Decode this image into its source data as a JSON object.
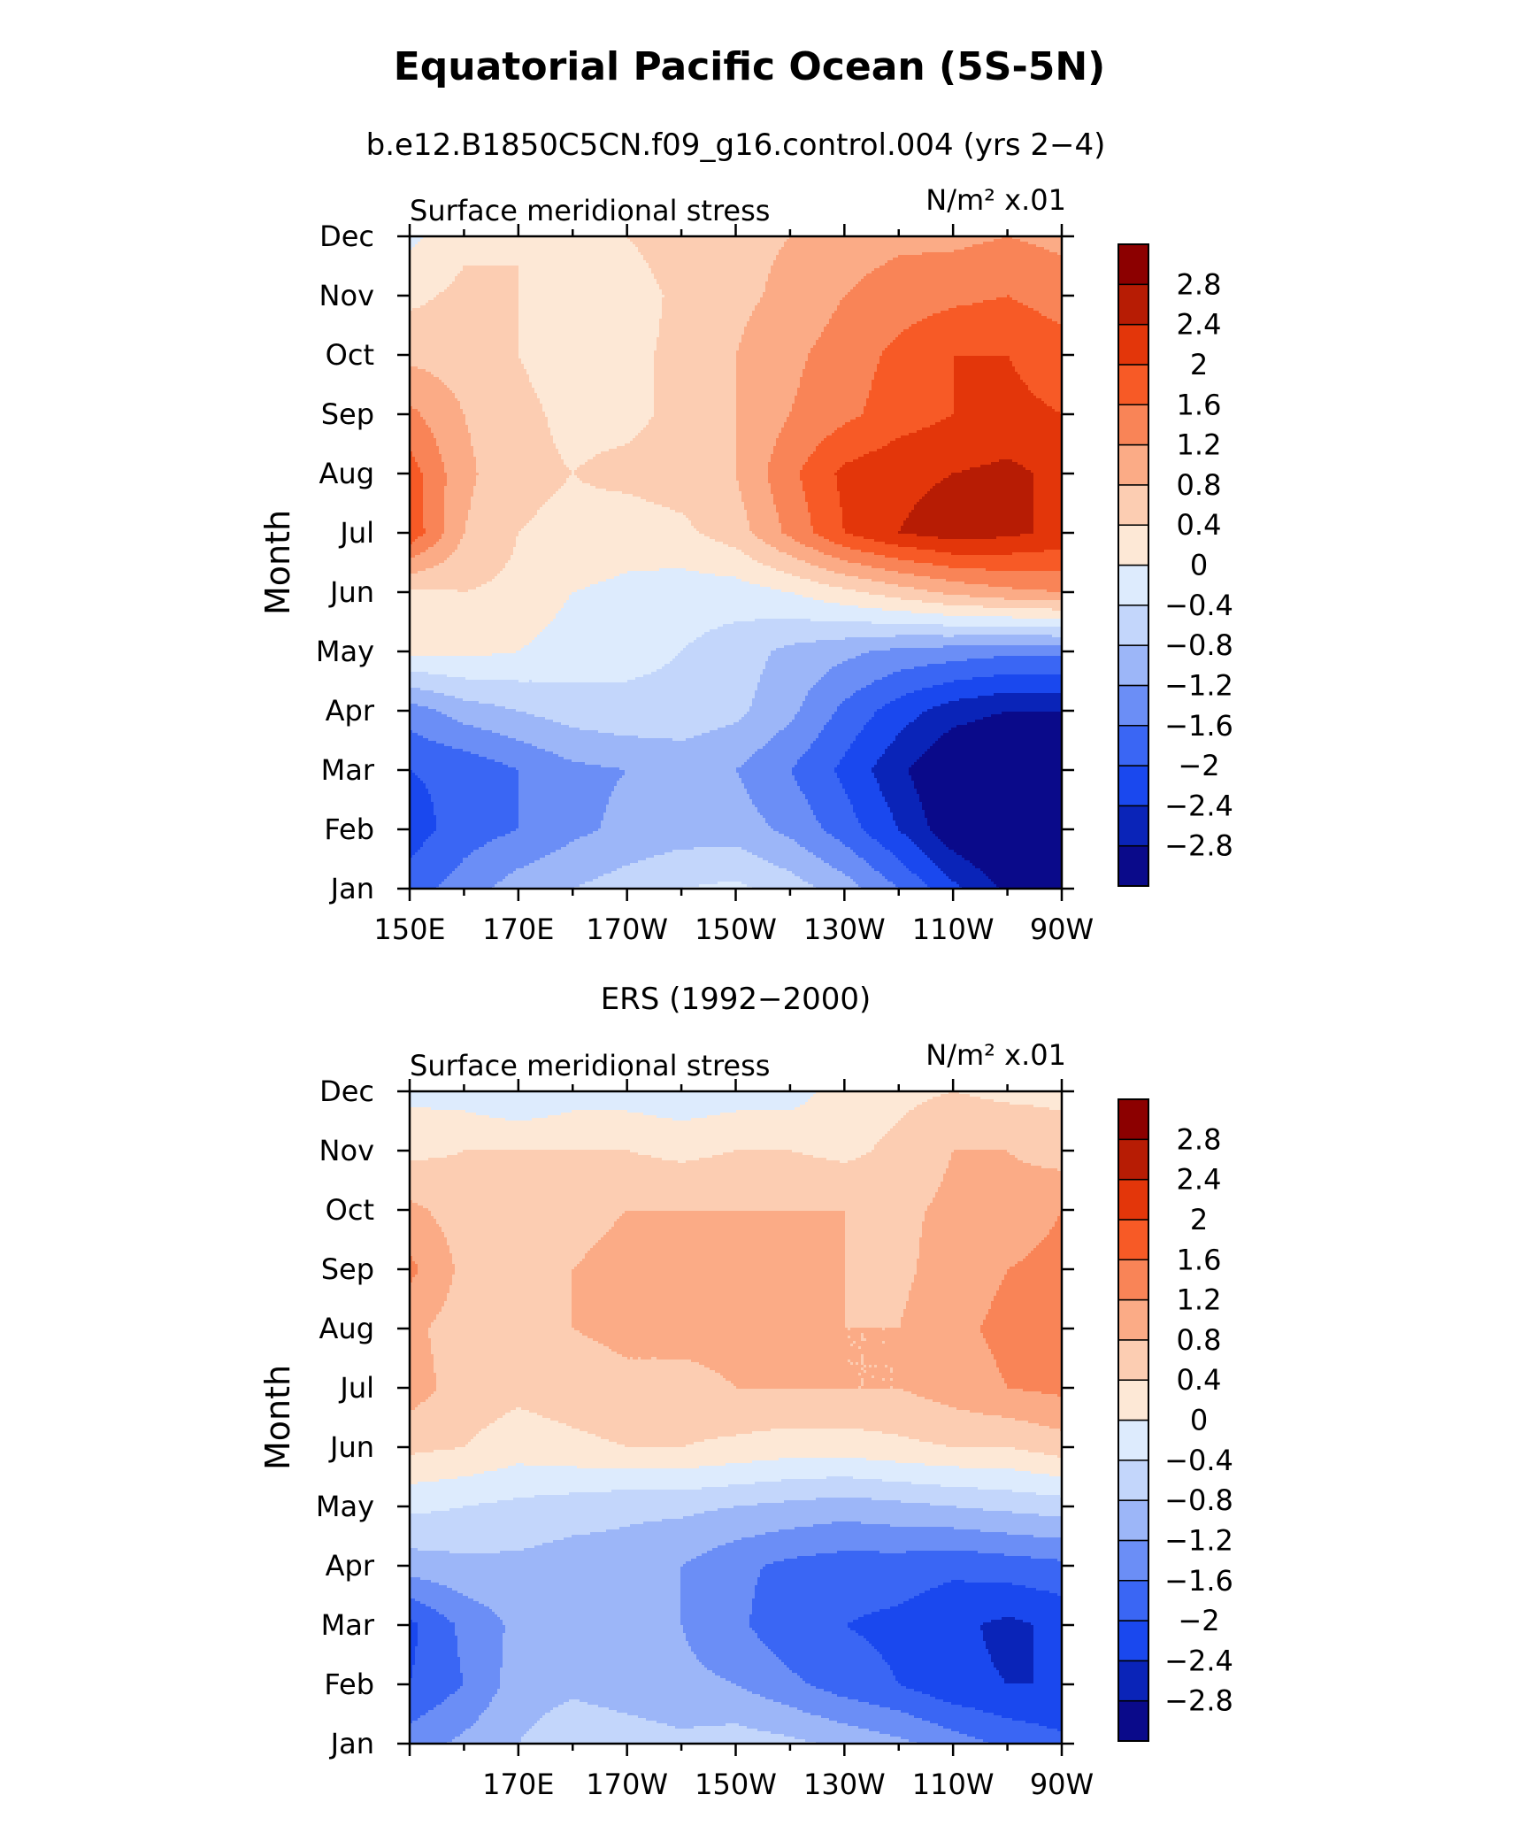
{
  "figure": {
    "title": "Equatorial Pacific Ocean (5S-5N)"
  },
  "colorbar": {
    "colors": [
      "#0a0a8a",
      "#0a24b8",
      "#1a48ee",
      "#3a66f4",
      "#6b8ef6",
      "#9cb6f8",
      "#c3d6fb",
      "#ddebfd",
      "#fde8d6",
      "#fccdb2",
      "#fbab86",
      "#f98457",
      "#f75a26",
      "#e3360a",
      "#b71c04",
      "#8c0000"
    ],
    "labels": [
      "2.8",
      "2.4",
      "2",
      "1.6",
      "1.2",
      "0.8",
      "0.4",
      "0",
      "−0.4",
      "−0.8",
      "−1.2",
      "−1.6",
      "−2",
      "−2.4",
      "−2.8"
    ]
  },
  "chart_data": [
    {
      "type": "heatmap",
      "id": "model",
      "subtitle": "b.e12.B1850C5CN.f09_g16.control.004 (yrs 2−4)",
      "left_label": "Surface meridional stress",
      "units": "N/m² x.01",
      "ylabel": "Month",
      "y_ticks": [
        "Jan",
        "Feb",
        "Mar",
        "Apr",
        "May",
        "Jun",
        "Jul",
        "Aug",
        "Sep",
        "Oct",
        "Nov",
        "Dec"
      ],
      "x_ticks": [
        "150E",
        "170E",
        "170W",
        "150W",
        "130W",
        "110W",
        "90W"
      ],
      "x_range_deg_east": [
        150,
        270
      ],
      "levels": [
        -2.8,
        -2.4,
        -2.0,
        -1.6,
        -1.2,
        -0.8,
        -0.4,
        0,
        0.4,
        0.8,
        1.2,
        1.6,
        2.0,
        2.4,
        2.8
      ],
      "lon": [
        150,
        160,
        170,
        180,
        190,
        200,
        210,
        220,
        230,
        240,
        250,
        260,
        270
      ],
      "values": [
        [
          -1.8,
          -1.4,
          -1.0,
          -0.8,
          -0.6,
          -0.4,
          -0.3,
          -0.6,
          -1.0,
          -1.6,
          -2.3,
          -2.9,
          -3.1
        ],
        [
          -2.2,
          -1.8,
          -1.6,
          -1.3,
          -1.1,
          -1.0,
          -1.0,
          -1.3,
          -1.8,
          -2.4,
          -3.1,
          -3.4,
          -3.4
        ],
        [
          -2.0,
          -1.9,
          -1.6,
          -1.3,
          -1.2,
          -1.1,
          -1.2,
          -1.6,
          -2.1,
          -2.7,
          -3.3,
          -3.5,
          -3.4
        ],
        [
          -1.4,
          -1.0,
          -0.8,
          -0.6,
          -0.5,
          -0.5,
          -0.7,
          -1.1,
          -1.7,
          -2.2,
          -2.6,
          -2.8,
          -2.8
        ],
        [
          0.1,
          0.1,
          0.0,
          -0.2,
          -0.3,
          -0.4,
          -0.6,
          -0.9,
          -1.1,
          -1.3,
          -1.4,
          -1.5,
          -1.5
        ],
        [
          0.3,
          0.4,
          0.3,
          0.0,
          -0.1,
          -0.2,
          -0.2,
          0.0,
          0.3,
          0.6,
          0.9,
          1.1,
          1.2
        ],
        [
          1.9,
          0.8,
          0.4,
          0.3,
          0.2,
          0.3,
          0.6,
          1.3,
          2.0,
          2.4,
          2.6,
          2.5,
          2.3
        ],
        [
          1.8,
          0.9,
          0.5,
          0.4,
          0.5,
          0.6,
          0.8,
          1.5,
          2.1,
          2.3,
          2.4,
          2.5,
          2.3
        ],
        [
          1.3,
          0.8,
          0.5,
          0.3,
          0.3,
          0.5,
          0.8,
          1.2,
          1.5,
          1.8,
          2.0,
          2.1,
          2.0
        ],
        [
          0.7,
          0.6,
          0.4,
          0.2,
          0.3,
          0.5,
          0.8,
          1.1,
          1.4,
          1.7,
          2.0,
          2.0,
          1.8
        ],
        [
          0.3,
          0.5,
          0.4,
          0.3,
          0.2,
          0.5,
          0.7,
          0.9,
          1.2,
          1.4,
          1.5,
          1.6,
          1.4
        ],
        [
          -0.1,
          0.3,
          0.4,
          0.4,
          0.4,
          0.6,
          0.7,
          0.8,
          1.0,
          1.1,
          1.1,
          1.2,
          1.1
        ]
      ]
    },
    {
      "type": "heatmap",
      "id": "ers",
      "subtitle": "ERS (1992−2000)",
      "left_label": "Surface meridional stress",
      "units": "N/m² x.01",
      "ylabel": "Month",
      "y_ticks": [
        "Jan",
        "Feb",
        "Mar",
        "Apr",
        "May",
        "Jun",
        "Jul",
        "Aug",
        "Sep",
        "Oct",
        "Nov",
        "Dec"
      ],
      "x_ticks": [
        "170E",
        "170W",
        "150W",
        "130W",
        "110W",
        "90W"
      ],
      "x_range_deg_east": [
        150,
        270
      ],
      "levels": [
        -2.8,
        -2.4,
        -2.0,
        -1.6,
        -1.2,
        -0.8,
        -0.4,
        0,
        0.4,
        0.8,
        1.2,
        1.6,
        2.0,
        2.4,
        2.8
      ],
      "lon": [
        150,
        160,
        170,
        180,
        190,
        200,
        210,
        220,
        230,
        240,
        250,
        260,
        270
      ],
      "values": [
        [
          -1.4,
          -1.1,
          -0.8,
          -0.5,
          -0.6,
          -0.7,
          -0.6,
          -0.7,
          -0.9,
          -1.1,
          -1.4,
          -1.7,
          -1.9
        ],
        [
          -2.0,
          -1.6,
          -1.0,
          -0.9,
          -1.0,
          -1.1,
          -1.2,
          -1.5,
          -1.8,
          -2.0,
          -2.3,
          -2.4,
          -2.4
        ],
        [
          -2.1,
          -1.5,
          -1.1,
          -1.0,
          -1.1,
          -1.2,
          -1.5,
          -1.9,
          -2.0,
          -2.1,
          -2.3,
          -2.5,
          -2.3
        ],
        [
          -1.0,
          -0.9,
          -0.9,
          -1.0,
          -1.0,
          -1.2,
          -1.5,
          -1.7,
          -1.8,
          -1.8,
          -1.9,
          -1.8,
          -1.7
        ],
        [
          -0.3,
          -0.4,
          -0.5,
          -0.6,
          -0.7,
          -0.7,
          -0.8,
          -0.9,
          -1.0,
          -0.9,
          -0.8,
          -0.7,
          -0.6
        ],
        [
          0.5,
          0.4,
          0.2,
          0.3,
          0.4,
          0.4,
          0.3,
          0.2,
          0.2,
          0.3,
          0.4,
          0.4,
          0.6
        ],
        [
          1.0,
          0.6,
          0.5,
          0.6,
          0.7,
          0.7,
          0.8,
          0.8,
          0.8,
          0.8,
          1.0,
          1.2,
          1.3
        ],
        [
          0.9,
          0.6,
          0.6,
          0.8,
          0.9,
          0.9,
          0.9,
          0.9,
          0.8,
          0.8,
          1.1,
          1.3,
          1.3
        ],
        [
          1.3,
          0.7,
          0.6,
          0.8,
          0.9,
          0.9,
          0.9,
          0.9,
          0.8,
          0.7,
          1.0,
          1.2,
          1.3
        ],
        [
          0.9,
          0.6,
          0.6,
          0.7,
          0.8,
          0.8,
          0.8,
          0.8,
          0.8,
          0.7,
          0.9,
          1.0,
          1.2
        ],
        [
          0.3,
          0.4,
          0.4,
          0.4,
          0.4,
          0.3,
          0.4,
          0.4,
          0.3,
          0.5,
          0.8,
          0.8,
          0.6
        ],
        [
          -0.1,
          -0.2,
          -0.4,
          -0.2,
          -0.2,
          -0.3,
          -0.2,
          -0.2,
          0.2,
          0.3,
          0.4,
          0.3,
          0.3
        ]
      ]
    }
  ]
}
